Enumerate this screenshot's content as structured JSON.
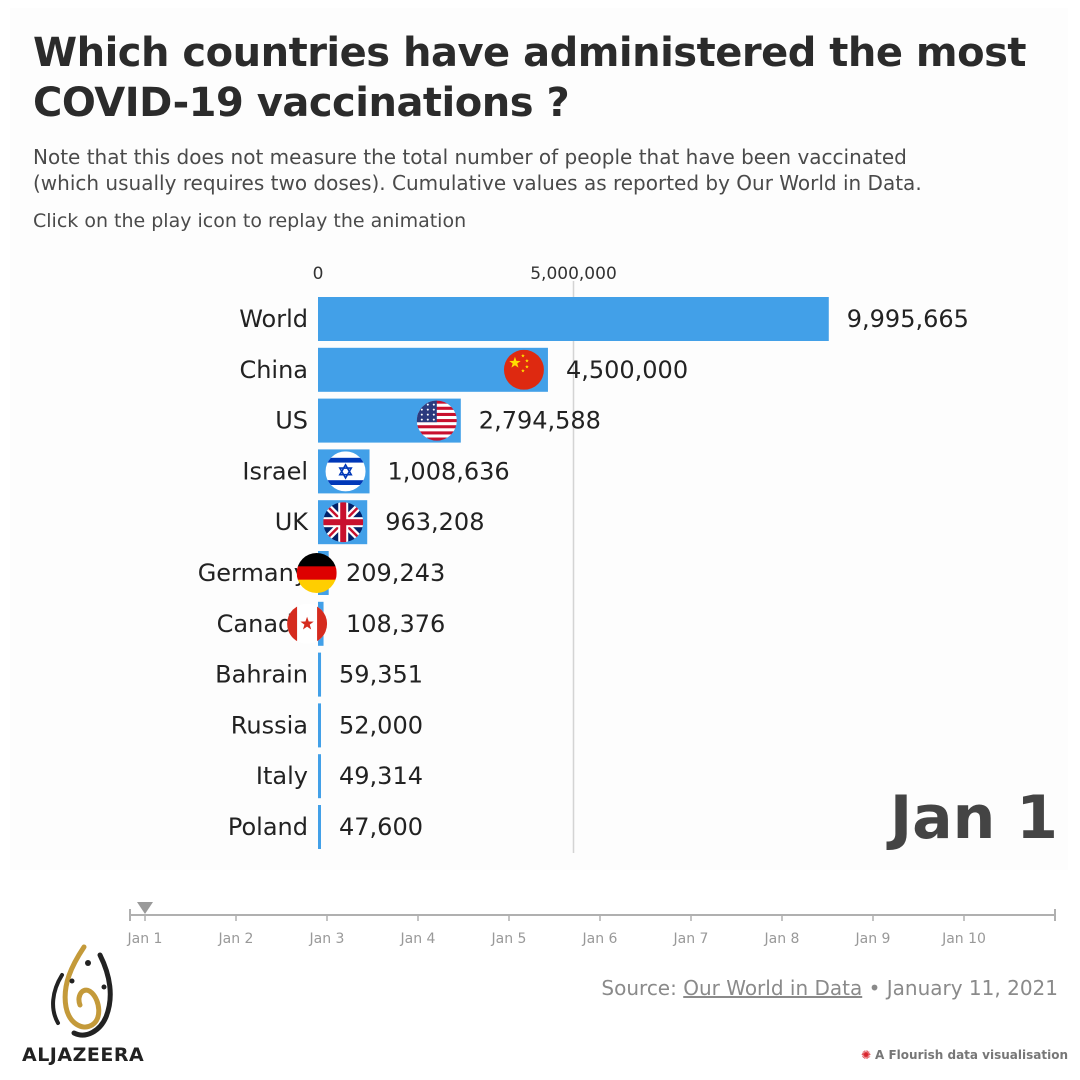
{
  "title_line1": "Which countries have administered the most",
  "title_line2": "COVID-19 vaccinations ?",
  "subtitle_line1": "Note that this does not measure the total number of people that have been vaccinated",
  "subtitle_line2": "(which usually requires two doses). Cumulative values as reported by Our World in Data.",
  "instruction": "Click on the play icon to replay the animation",
  "current_date": "Jan 1",
  "chart_data": {
    "type": "bar",
    "orientation": "horizontal",
    "categories": [
      "World",
      "China",
      "US",
      "Israel",
      "UK",
      "Germany",
      "Canada",
      "Bahrain",
      "Russia",
      "Italy",
      "Poland"
    ],
    "values": [
      9995665,
      4500000,
      2794588,
      1008636,
      963208,
      209243,
      108376,
      59351,
      52000,
      49314,
      47600
    ],
    "value_labels": [
      "9,995,665",
      "4,500,000",
      "2,794,588",
      "1,008,636",
      "963,208",
      "209,243",
      "108,376",
      "59,351",
      "52,000",
      "49,314",
      "47,600"
    ],
    "flags": [
      "",
      "china-flag-icon",
      "us-flag-icon",
      "israel-flag-icon",
      "uk-flag-icon",
      "germany-flag-icon",
      "canada-flag-icon",
      "",
      "",
      "",
      ""
    ],
    "x_ticks": [
      0,
      5000000
    ],
    "x_tick_labels": [
      "0",
      "5,000,000"
    ],
    "xlim": [
      0,
      10000000
    ],
    "axis_position": "top",
    "grid": true,
    "bar_color": "#42a0e8"
  },
  "timeline": {
    "labels": [
      "Jan 1",
      "Jan 2",
      "Jan 3",
      "Jan 4",
      "Jan 5",
      "Jan 6",
      "Jan 7",
      "Jan 8",
      "Jan 9",
      "Jan 10"
    ],
    "current_index": 0
  },
  "source": {
    "prefix": "Source:",
    "link_text": "Our World in Data",
    "date": "• January 11, 2021"
  },
  "brand": {
    "logo_text": "ALJAZEERA",
    "logo_icon": "aljazeera-logo-icon"
  },
  "credit": {
    "text": "A Flourish data visualisation",
    "icon": "flourish-icon"
  }
}
